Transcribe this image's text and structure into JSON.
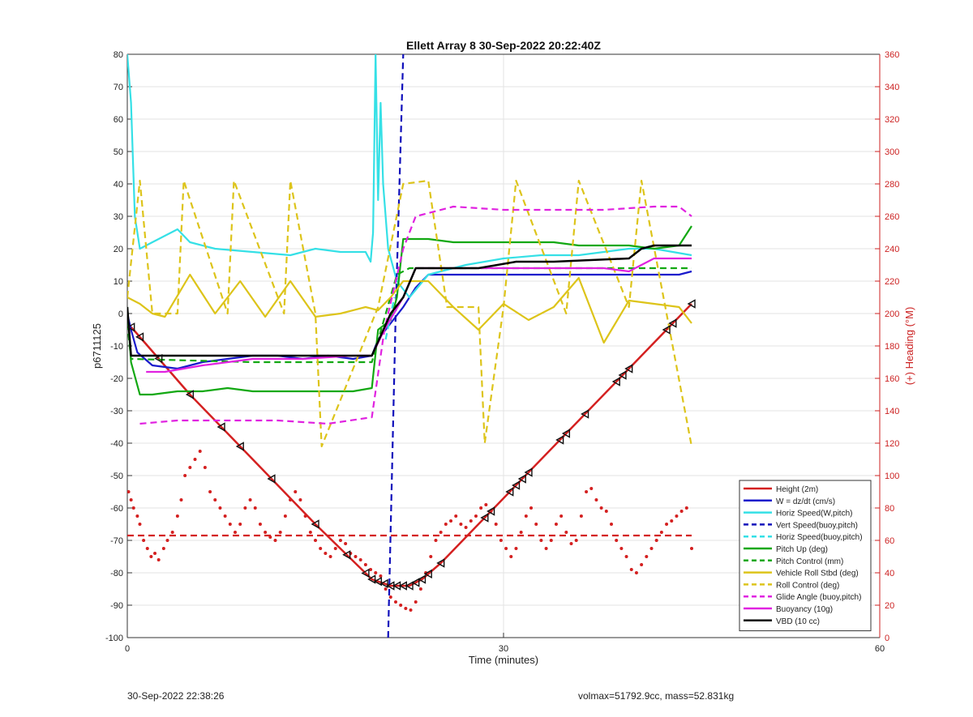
{
  "chart_data": {
    "type": "line",
    "title": "Ellett Array 8 30-Sep-2022 20:22:40Z",
    "xlabel": "Time (minutes)",
    "ylabel": "p6711125",
    "ylabel_right": "(+) Heading (°M)",
    "xlim": [
      0,
      60
    ],
    "ylim": [
      -100,
      80
    ],
    "ylim_right": [
      0,
      360
    ],
    "x_ticks": [
      "0",
      "30",
      "60"
    ],
    "y_ticks": [
      "80",
      "70",
      "60",
      "50",
      "40",
      "30",
      "20",
      "10",
      "0",
      "-10",
      "-20",
      "-30",
      "-40",
      "-50",
      "-60",
      "-70",
      "-80",
      "-90",
      "-100"
    ],
    "y_ticks_right": [
      "360",
      "340",
      "320",
      "300",
      "280",
      "260",
      "240",
      "220",
      "200",
      "180",
      "160",
      "140",
      "120",
      "100",
      "80",
      "60",
      "40",
      "20",
      "0"
    ],
    "grid": true,
    "legend_position": "bottom-right",
    "series": [
      {
        "name": "Height (2m)",
        "color": "#d42020",
        "style": "solid",
        "x": [
          0,
          0.5,
          5,
          10,
          15,
          19.5,
          21,
          22.5,
          23.5,
          25,
          30,
          35,
          40,
          45
        ],
        "y": [
          -3,
          -5,
          -25,
          -45,
          -65,
          -82,
          -84,
          -84,
          -82,
          -77,
          -57,
          -37,
          -17,
          3
        ]
      },
      {
        "name": "W = dz/dt (cm/s)",
        "color": "#1a1acc",
        "style": "solid",
        "x": [
          0,
          0.3,
          0.8,
          2,
          4,
          6,
          8,
          10,
          12,
          14,
          16,
          18,
          19.5,
          20,
          21,
          22,
          23,
          24,
          26,
          28,
          30,
          32,
          34,
          36,
          38,
          40,
          42,
          44,
          45
        ],
        "y": [
          0,
          -5,
          -12,
          -16,
          -17,
          -15,
          -14,
          -13,
          -13,
          -14,
          -13,
          -14,
          -13,
          -8,
          -3,
          2,
          8,
          12,
          12,
          12,
          12,
          12,
          12,
          12,
          12,
          12,
          12,
          12,
          13
        ]
      },
      {
        "name": "Horiz Speed(W,pitch)",
        "color": "#35e0e6",
        "style": "solid",
        "x": [
          0,
          0.3,
          0.6,
          1,
          2,
          3,
          4,
          5,
          7,
          10,
          13,
          15,
          17,
          19,
          19.4,
          19.6,
          19.8,
          20,
          20.2,
          20.4,
          20.8,
          21.5,
          22.5,
          24,
          27,
          30,
          33,
          36,
          38,
          40,
          42,
          45
        ],
        "y": [
          80,
          65,
          30,
          20,
          22,
          24,
          26,
          22,
          20,
          19,
          18,
          20,
          19,
          19,
          16,
          25,
          80,
          35,
          65,
          40,
          20,
          10,
          5,
          12,
          15,
          17,
          18,
          18,
          19,
          20,
          20,
          18
        ]
      },
      {
        "name": "Vert Speed(buoy,pitch)",
        "color": "#1010bb",
        "style": "dashed",
        "x": [
          20.8,
          21.4,
          22.0
        ],
        "y": [
          -100,
          0,
          80
        ]
      },
      {
        "name": "Horiz Speed(buoy,pitch)",
        "color": "#35e0e6",
        "style": "dashed",
        "x": [
          20.6,
          21.3
        ],
        "y": [
          -8,
          5
        ]
      },
      {
        "name": "Pitch Up (deg)",
        "color": "#12a812",
        "style": "solid",
        "x": [
          0,
          0.3,
          1,
          2,
          4,
          6,
          8,
          10,
          12,
          14,
          16,
          18,
          19.5,
          20,
          21,
          21.5,
          22,
          24,
          26,
          28,
          30,
          32,
          34,
          36,
          38,
          40,
          42,
          44,
          45
        ],
        "y": [
          2,
          -15,
          -25,
          -25,
          -24,
          -24,
          -23,
          -24,
          -24,
          -24,
          -24,
          -24,
          -23,
          -5,
          -2,
          5,
          23,
          23,
          22,
          22,
          22,
          22,
          22,
          21,
          21,
          21,
          20,
          21,
          27
        ]
      },
      {
        "name": "Pitch Control (mm)",
        "color": "#12a812",
        "style": "dashed",
        "x": [
          0,
          0.3,
          10,
          19.5,
          21.5,
          22.5,
          45
        ],
        "y": [
          -3,
          -14,
          -15,
          -15,
          12,
          14,
          14
        ]
      },
      {
        "name": "Vehicle Roll Stbd (deg)",
        "color": "#ddc41a",
        "style": "solid",
        "x": [
          0,
          1,
          2,
          3,
          5,
          7,
          9,
          11,
          13,
          15,
          17,
          19,
          20,
          21,
          22,
          24,
          26,
          28,
          30,
          32,
          34,
          36,
          38,
          40,
          42,
          44,
          45
        ],
        "y": [
          5,
          3,
          0,
          -1,
          12,
          0,
          10,
          -1,
          10,
          -1,
          0,
          2,
          1,
          5,
          10,
          10,
          2,
          -5,
          3,
          -2,
          2,
          11,
          -9,
          4,
          3,
          2,
          -3
        ]
      },
      {
        "name": "Roll Control (deg)",
        "color": "#ddc41a",
        "style": "dashed",
        "x": [
          0,
          1,
          2,
          4,
          4.5,
          8,
          8.5,
          12.5,
          13,
          15,
          15.5,
          20,
          22,
          24,
          25.5,
          28,
          28.5,
          30,
          31,
          35,
          36,
          40,
          41,
          45
        ],
        "y": [
          5,
          41,
          0,
          0,
          41,
          0,
          41,
          0,
          41,
          0,
          -41,
          2,
          40,
          41,
          2,
          2,
          -40,
          2,
          41,
          0,
          41,
          2,
          41,
          -41
        ]
      },
      {
        "name": "Glide Angle (buoy,pitch)",
        "color": "#e022e0",
        "style": "dashed",
        "x": [
          1,
          4,
          8,
          12,
          16,
          19.5,
          20.5,
          22,
          23,
          26,
          30,
          34,
          38,
          42,
          44,
          45
        ],
        "y": [
          -34,
          -33,
          -33,
          -33,
          -34,
          -32,
          -5,
          20,
          30,
          33,
          32,
          32,
          32,
          33,
          33,
          30
        ]
      },
      {
        "name": "Buoyancy (10g)",
        "color": "#e022e0",
        "style": "solid",
        "x": [
          1.5,
          3,
          6,
          10,
          14,
          18,
          19.5,
          20.5,
          22,
          23,
          25,
          30,
          34,
          38,
          40,
          42,
          45
        ],
        "y": [
          -18,
          -18,
          -16,
          -14,
          -14,
          -13,
          -13,
          -5,
          5,
          14,
          14,
          14,
          14,
          14,
          13,
          17,
          17
        ]
      },
      {
        "name": "VBD (10 cc)",
        "color": "#000000",
        "style": "solid",
        "x": [
          0,
          0.3,
          5,
          10,
          15,
          19.5,
          21,
          22,
          23,
          24,
          28,
          31,
          34,
          40,
          41,
          42,
          45
        ],
        "y": [
          2,
          -13,
          -13,
          -13,
          -13,
          -13,
          0,
          5,
          14,
          14,
          14,
          16,
          16,
          17,
          20,
          21,
          21
        ]
      },
      {
        "name": "Heading",
        "color": "#d42020",
        "style": "dots",
        "axis": "right",
        "points": [
          [
            0.1,
            90
          ],
          [
            0.3,
            85
          ],
          [
            0.5,
            80
          ],
          [
            0.8,
            75
          ],
          [
            1.0,
            70
          ],
          [
            1.3,
            60
          ],
          [
            1.6,
            55
          ],
          [
            1.9,
            50
          ],
          [
            2.2,
            52
          ],
          [
            2.5,
            48
          ],
          [
            2.9,
            55
          ],
          [
            3.2,
            60
          ],
          [
            3.6,
            65
          ],
          [
            4.0,
            75
          ],
          [
            4.3,
            85
          ],
          [
            4.6,
            100
          ],
          [
            5.0,
            105
          ],
          [
            5.4,
            110
          ],
          [
            5.8,
            115
          ],
          [
            6.2,
            105
          ],
          [
            6.6,
            90
          ],
          [
            7.0,
            85
          ],
          [
            7.4,
            80
          ],
          [
            7.8,
            75
          ],
          [
            8.2,
            70
          ],
          [
            8.6,
            65
          ],
          [
            9.0,
            70
          ],
          [
            9.4,
            80
          ],
          [
            9.8,
            85
          ],
          [
            10.2,
            80
          ],
          [
            10.6,
            70
          ],
          [
            11.0,
            65
          ],
          [
            11.4,
            62
          ],
          [
            11.8,
            60
          ],
          [
            12.2,
            65
          ],
          [
            12.6,
            75
          ],
          [
            13.0,
            85
          ],
          [
            13.4,
            90
          ],
          [
            13.8,
            85
          ],
          [
            14.2,
            75
          ],
          [
            14.6,
            65
          ],
          [
            15.0,
            60
          ],
          [
            15.4,
            55
          ],
          [
            15.8,
            52
          ],
          [
            16.2,
            50
          ],
          [
            16.6,
            55
          ],
          [
            17.0,
            60
          ],
          [
            17.4,
            58
          ],
          [
            17.8,
            52
          ],
          [
            18.2,
            50
          ],
          [
            18.6,
            48
          ],
          [
            19.0,
            45
          ],
          [
            19.4,
            42
          ],
          [
            19.8,
            40
          ],
          [
            20.2,
            38
          ],
          [
            20.6,
            30
          ],
          [
            21.0,
            25
          ],
          [
            21.4,
            22
          ],
          [
            21.8,
            20
          ],
          [
            22.2,
            18
          ],
          [
            22.6,
            17
          ],
          [
            23.0,
            22
          ],
          [
            23.4,
            30
          ],
          [
            23.8,
            40
          ],
          [
            24.2,
            50
          ],
          [
            24.6,
            60
          ],
          [
            25.0,
            65
          ],
          [
            25.4,
            70
          ],
          [
            25.8,
            72
          ],
          [
            26.2,
            75
          ],
          [
            26.6,
            70
          ],
          [
            27.0,
            68
          ],
          [
            27.4,
            72
          ],
          [
            27.8,
            75
          ],
          [
            28.2,
            80
          ],
          [
            28.6,
            82
          ],
          [
            29.0,
            78
          ],
          [
            29.4,
            70
          ],
          [
            29.8,
            60
          ],
          [
            30.2,
            55
          ],
          [
            30.6,
            50
          ],
          [
            31.0,
            55
          ],
          [
            31.4,
            65
          ],
          [
            31.8,
            75
          ],
          [
            32.2,
            80
          ],
          [
            32.6,
            70
          ],
          [
            33.0,
            60
          ],
          [
            33.4,
            55
          ],
          [
            33.8,
            60
          ],
          [
            34.2,
            70
          ],
          [
            34.6,
            75
          ],
          [
            35.0,
            65
          ],
          [
            35.4,
            58
          ],
          [
            35.8,
            60
          ],
          [
            36.2,
            75
          ],
          [
            36.6,
            90
          ],
          [
            37.0,
            92
          ],
          [
            37.4,
            85
          ],
          [
            37.8,
            80
          ],
          [
            38.2,
            78
          ],
          [
            38.6,
            70
          ],
          [
            39.0,
            60
          ],
          [
            39.4,
            55
          ],
          [
            39.8,
            50
          ],
          [
            40.2,
            42
          ],
          [
            40.6,
            40
          ],
          [
            41.0,
            45
          ],
          [
            41.4,
            50
          ],
          [
            41.8,
            55
          ],
          [
            42.2,
            60
          ],
          [
            42.6,
            65
          ],
          [
            43.0,
            70
          ],
          [
            43.4,
            72
          ],
          [
            43.8,
            75
          ],
          [
            44.2,
            78
          ],
          [
            44.6,
            80
          ],
          [
            45.0,
            55
          ]
        ]
      },
      {
        "name": "Mean Heading",
        "color": "#d42020",
        "style": "dashed",
        "axis": "right",
        "x": [
          0,
          45
        ],
        "y": [
          63,
          63
        ]
      }
    ],
    "markers": {
      "style": "triangle",
      "color": "#111111",
      "series": "Height (2m)",
      "x": [
        0.3,
        1.0,
        2.5,
        5.0,
        7.5,
        9.0,
        11.5,
        15.0,
        17.5,
        19.0,
        19.5,
        20.0,
        20.5,
        21.0,
        21.5,
        22.0,
        22.5,
        23.0,
        23.5,
        24.0,
        25.0,
        28.5,
        29.0,
        30.5,
        31.0,
        31.5,
        32.0,
        34.5,
        35.0,
        36.5,
        39.0,
        39.5,
        40.0,
        43.0,
        43.5,
        45.0
      ]
    }
  },
  "footer": {
    "left": "30-Sep-2022 22:38:26",
    "right": "volmax=51792.9cc, mass=52.831kg"
  }
}
